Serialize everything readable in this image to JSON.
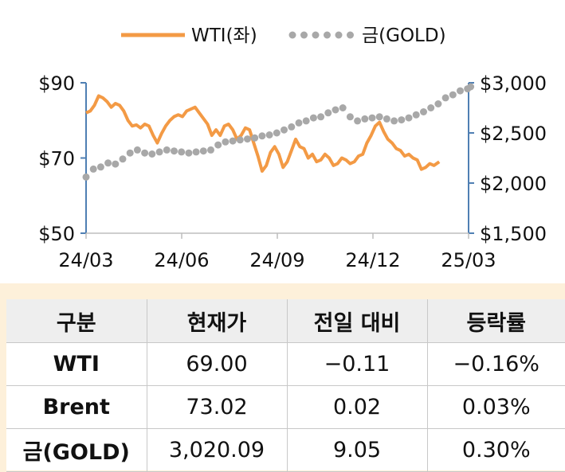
{
  "chart_data": {
    "type": "line",
    "legend": {
      "placement": "top",
      "items": [
        {
          "label": "WTI(좌)",
          "style": "line",
          "color": "#f39a45"
        },
        {
          "label": "금(GOLD)",
          "style": "dots",
          "color": "#a8a8a8"
        }
      ]
    },
    "x_ticks": [
      "24/03",
      "24/06",
      "24/09",
      "24/12",
      "25/03"
    ],
    "x_range": [
      "2024-03-01",
      "2025-03-01"
    ],
    "y_left": {
      "range": [
        50,
        90
      ],
      "ticks": [
        "$90",
        "$70",
        "$50"
      ],
      "tick_values": [
        90,
        70,
        50
      ]
    },
    "y_right": {
      "range": [
        1500,
        3000
      ],
      "ticks": [
        "$3,000",
        "$2,500",
        "$2,000",
        "$1,500"
      ],
      "tick_values": [
        3000,
        2500,
        2000,
        1500
      ]
    },
    "grid": false,
    "axis_color": "#4f7fb3",
    "series": [
      {
        "name": "WTI(좌)",
        "axis": "left",
        "color": "#f39a45",
        "points": [
          [
            "2024-03-01",
            82.0
          ],
          [
            "2024-03-05",
            82.5
          ],
          [
            "2024-03-09",
            84.0
          ],
          [
            "2024-03-13",
            86.5
          ],
          [
            "2024-03-17",
            86.0
          ],
          [
            "2024-03-21",
            85.0
          ],
          [
            "2024-03-25",
            83.5
          ],
          [
            "2024-03-29",
            84.5
          ],
          [
            "2024-04-02",
            84.0
          ],
          [
            "2024-04-06",
            82.5
          ],
          [
            "2024-04-10",
            80.0
          ],
          [
            "2024-04-14",
            78.5
          ],
          [
            "2024-04-18",
            78.8
          ],
          [
            "2024-04-22",
            78.0
          ],
          [
            "2024-04-26",
            79.0
          ],
          [
            "2024-04-30",
            78.5
          ],
          [
            "2024-05-04",
            76.0
          ],
          [
            "2024-05-08",
            74.0
          ],
          [
            "2024-05-12",
            76.5
          ],
          [
            "2024-05-16",
            78.5
          ],
          [
            "2024-05-20",
            80.0
          ],
          [
            "2024-05-24",
            81.0
          ],
          [
            "2024-05-28",
            81.5
          ],
          [
            "2024-06-01",
            81.0
          ],
          [
            "2024-06-05",
            82.5
          ],
          [
            "2024-06-09",
            83.0
          ],
          [
            "2024-06-13",
            83.5
          ],
          [
            "2024-06-17",
            82.0
          ],
          [
            "2024-06-21",
            80.5
          ],
          [
            "2024-06-25",
            79.0
          ],
          [
            "2024-06-29",
            76.0
          ],
          [
            "2024-07-03",
            77.5
          ],
          [
            "2024-07-07",
            76.0
          ],
          [
            "2024-07-11",
            78.5
          ],
          [
            "2024-07-15",
            79.0
          ],
          [
            "2024-07-19",
            77.5
          ],
          [
            "2024-07-23",
            75.0
          ],
          [
            "2024-07-27",
            76.0
          ],
          [
            "2024-07-31",
            78.0
          ],
          [
            "2024-08-04",
            77.5
          ],
          [
            "2024-08-08",
            74.0
          ],
          [
            "2024-08-12",
            70.5
          ],
          [
            "2024-08-16",
            66.5
          ],
          [
            "2024-08-20",
            68.0
          ],
          [
            "2024-08-24",
            71.5
          ],
          [
            "2024-08-28",
            73.0
          ],
          [
            "2024-09-01",
            71.0
          ],
          [
            "2024-09-05",
            67.5
          ],
          [
            "2024-09-09",
            69.0
          ],
          [
            "2024-09-13",
            72.0
          ],
          [
            "2024-09-17",
            75.0
          ],
          [
            "2024-09-21",
            73.0
          ],
          [
            "2024-09-25",
            72.5
          ],
          [
            "2024-09-29",
            70.0
          ],
          [
            "2024-10-03",
            71.0
          ],
          [
            "2024-10-07",
            69.0
          ],
          [
            "2024-10-11",
            69.5
          ],
          [
            "2024-10-15",
            71.0
          ],
          [
            "2024-10-19",
            70.0
          ],
          [
            "2024-10-23",
            68.0
          ],
          [
            "2024-10-27",
            68.5
          ],
          [
            "2024-10-31",
            70.0
          ],
          [
            "2024-11-04",
            69.5
          ],
          [
            "2024-11-08",
            68.5
          ],
          [
            "2024-11-12",
            69.0
          ],
          [
            "2024-11-16",
            70.5
          ],
          [
            "2024-11-20",
            71.0
          ],
          [
            "2024-11-24",
            74.0
          ],
          [
            "2024-11-28",
            76.0
          ],
          [
            "2024-12-02",
            78.5
          ],
          [
            "2024-12-06",
            79.5
          ],
          [
            "2024-12-10",
            77.0
          ],
          [
            "2024-12-14",
            75.0
          ],
          [
            "2024-12-18",
            74.0
          ],
          [
            "2024-12-22",
            72.5
          ],
          [
            "2024-12-26",
            72.0
          ],
          [
            "2024-12-30",
            70.5
          ],
          [
            "2025-01-03",
            71.0
          ],
          [
            "2025-01-07",
            70.0
          ],
          [
            "2025-01-11",
            69.5
          ],
          [
            "2025-01-15",
            67.0
          ],
          [
            "2025-01-19",
            67.5
          ],
          [
            "2025-01-23",
            68.5
          ],
          [
            "2025-01-27",
            68.0
          ],
          [
            "2025-02-01",
            69.0
          ]
        ]
      },
      {
        "name": "금(GOLD)",
        "axis": "right",
        "color": "#a8a8a8",
        "points": [
          [
            "2024-03-01",
            2060
          ],
          [
            "2024-03-08",
            2140
          ],
          [
            "2024-03-15",
            2160
          ],
          [
            "2024-03-22",
            2200
          ],
          [
            "2024-03-29",
            2190
          ],
          [
            "2024-04-05",
            2240
          ],
          [
            "2024-04-12",
            2300
          ],
          [
            "2024-04-19",
            2330
          ],
          [
            "2024-04-26",
            2300
          ],
          [
            "2024-05-03",
            2290
          ],
          [
            "2024-05-10",
            2310
          ],
          [
            "2024-05-17",
            2330
          ],
          [
            "2024-05-24",
            2320
          ],
          [
            "2024-05-31",
            2310
          ],
          [
            "2024-06-07",
            2300
          ],
          [
            "2024-06-14",
            2310
          ],
          [
            "2024-06-21",
            2320
          ],
          [
            "2024-06-28",
            2330
          ],
          [
            "2024-07-05",
            2380
          ],
          [
            "2024-07-12",
            2410
          ],
          [
            "2024-07-19",
            2420
          ],
          [
            "2024-07-26",
            2430
          ],
          [
            "2024-08-02",
            2440
          ],
          [
            "2024-08-09",
            2450
          ],
          [
            "2024-08-16",
            2470
          ],
          [
            "2024-08-23",
            2480
          ],
          [
            "2024-08-30",
            2500
          ],
          [
            "2024-09-06",
            2530
          ],
          [
            "2024-09-13",
            2560
          ],
          [
            "2024-09-20",
            2600
          ],
          [
            "2024-09-27",
            2620
          ],
          [
            "2024-10-04",
            2650
          ],
          [
            "2024-10-11",
            2660
          ],
          [
            "2024-10-18",
            2700
          ],
          [
            "2024-10-25",
            2730
          ],
          [
            "2024-11-01",
            2750
          ],
          [
            "2024-11-08",
            2660
          ],
          [
            "2024-11-15",
            2620
          ],
          [
            "2024-11-22",
            2640
          ],
          [
            "2024-11-29",
            2650
          ],
          [
            "2024-12-06",
            2660
          ],
          [
            "2024-12-13",
            2640
          ],
          [
            "2024-12-20",
            2620
          ],
          [
            "2024-12-27",
            2630
          ],
          [
            "2025-01-03",
            2650
          ],
          [
            "2025-01-10",
            2680
          ],
          [
            "2025-01-17",
            2710
          ],
          [
            "2025-01-24",
            2750
          ],
          [
            "2025-01-31",
            2790
          ],
          [
            "2025-02-07",
            2850
          ],
          [
            "2025-02-14",
            2880
          ],
          [
            "2025-02-21",
            2920
          ],
          [
            "2025-02-28",
            2940
          ],
          [
            "2025-03-03",
            2960
          ]
        ]
      }
    ]
  },
  "table": {
    "headers": [
      "구분",
      "현재가",
      "전일 대비",
      "등락률"
    ],
    "rows": [
      [
        "WTI",
        "69.00",
        "−0.11",
        "−0.16%"
      ],
      [
        "Brent",
        "73.02",
        "0.02",
        "0.03%"
      ],
      [
        "금(GOLD)",
        "3,020.09",
        "9.05",
        "0.30%"
      ]
    ]
  }
}
